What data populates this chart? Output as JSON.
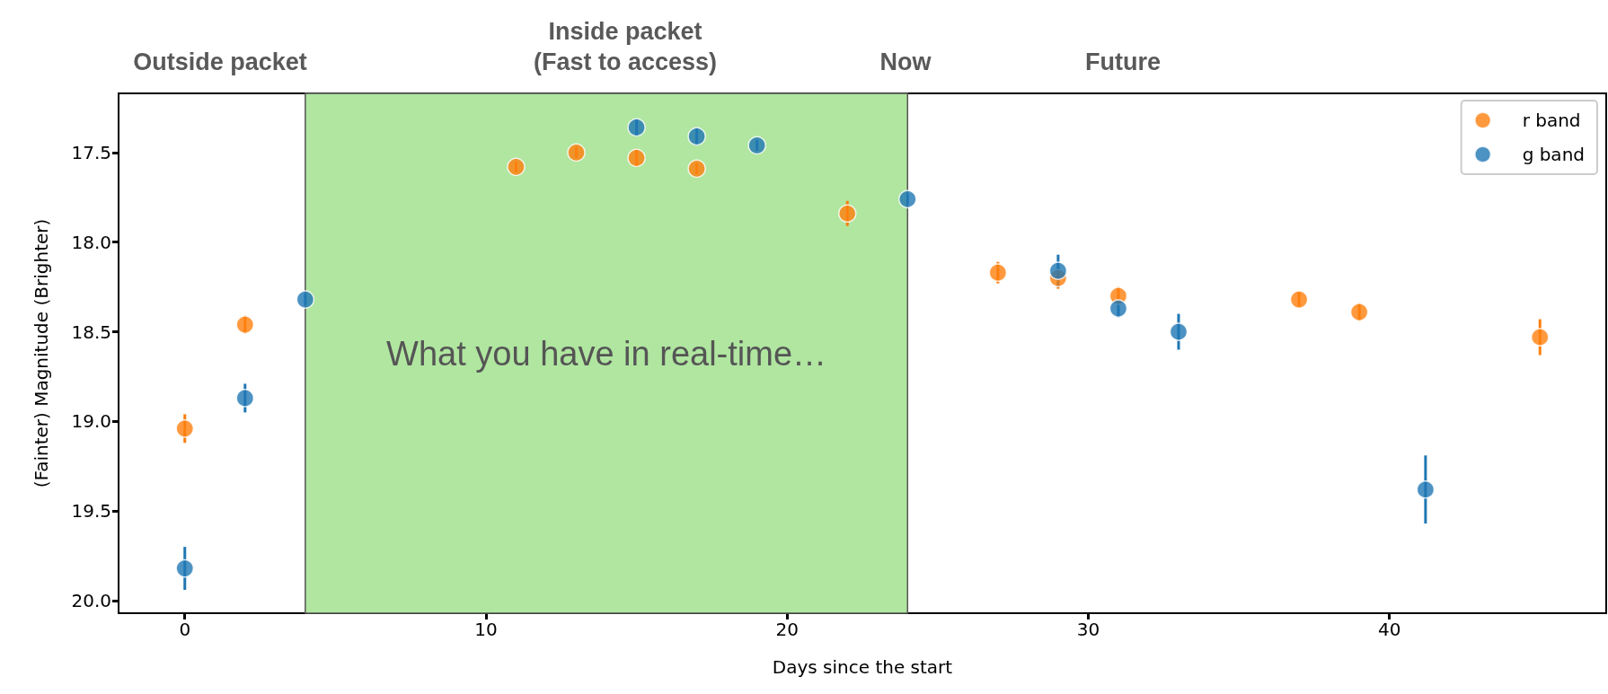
{
  "chart_data": {
    "type": "scatter",
    "xlabel": "Days since the start",
    "ylabel": "(Fainter) Magnitude (Brighter)",
    "xlim": [
      -2.2,
      47.2
    ],
    "xticks": [
      0,
      10,
      20,
      30,
      40
    ],
    "ylim": [
      20.07,
      17.17
    ],
    "yticks": [
      {
        "value": 17.5,
        "label": "17.5"
      },
      {
        "value": 18,
        "label": "18.0"
      },
      {
        "value": 18.5,
        "label": "18.5"
      },
      {
        "value": 19,
        "label": "19.0"
      },
      {
        "value": 19.5,
        "label": "19.5"
      },
      {
        "value": 20,
        "label": "20.0"
      }
    ],
    "series": [
      {
        "name": "r band",
        "color": "#ff7f0e",
        "x": [
          0,
          2,
          11,
          13,
          15,
          17,
          22,
          27,
          29,
          31,
          37,
          39,
          45
        ],
        "values": [
          19.04,
          18.46,
          17.58,
          17.5,
          17.53,
          17.59,
          17.84,
          18.17,
          18.2,
          18.3,
          18.32,
          18.39,
          18.53
        ],
        "errors": [
          0.08,
          0.05,
          0.03,
          0.03,
          0.05,
          0.03,
          0.07,
          0.06,
          0.06,
          0.05,
          0.04,
          0.05,
          0.1
        ]
      },
      {
        "name": "g band",
        "color": "#1f77b4",
        "x": [
          0,
          2,
          4,
          15,
          17,
          19,
          24,
          29,
          31,
          33,
          41.2
        ],
        "values": [
          19.82,
          18.87,
          18.32,
          17.36,
          17.41,
          17.46,
          17.76,
          18.16,
          18.37,
          18.5,
          19.38
        ],
        "errors": [
          0.12,
          0.08,
          0.03,
          0.05,
          0.05,
          0.03,
          0.03,
          0.09,
          0.05,
          0.1,
          0.19
        ]
      }
    ],
    "bands": [
      {
        "axis": "x",
        "from": 4,
        "to": 24,
        "label": "What you have in real-time…",
        "color": "#b0e6a0"
      }
    ],
    "annotations": [
      "Outside packet",
      "Inside packet\n(Fast to access)",
      "Now",
      "Future"
    ],
    "marker": "circle",
    "legend": "top right"
  }
}
